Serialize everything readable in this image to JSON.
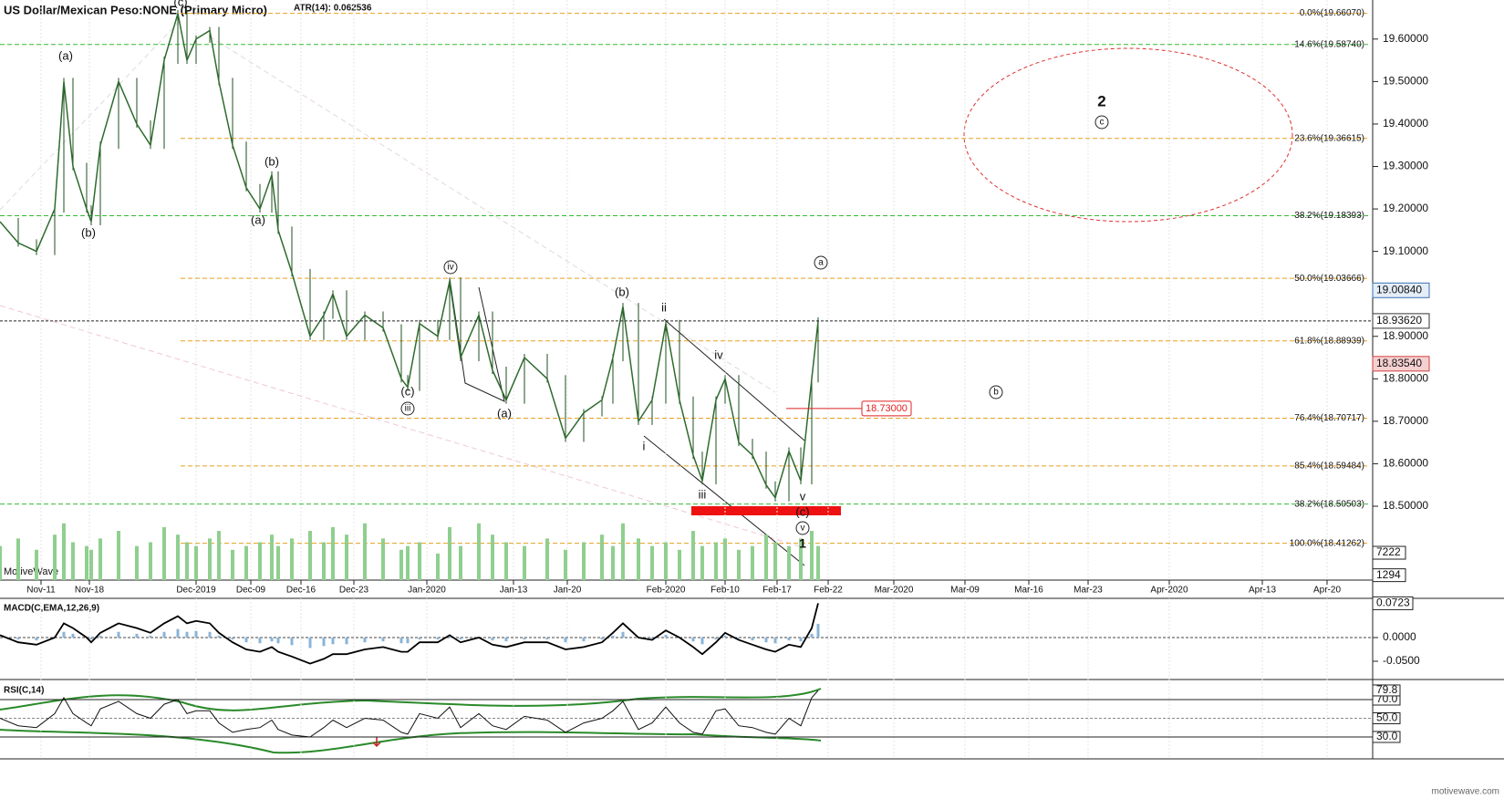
{
  "chart_data": {
    "type": "line",
    "title": "US Dollar/Mexican Peso:NONE (Primary Micro)",
    "subtitle": "ATR(14): 0.062536",
    "color": "#2e6b2e",
    "x": [
      0,
      2,
      4,
      6,
      7,
      8,
      9.5,
      10,
      11,
      13,
      15,
      16.5,
      18,
      19.5,
      20.5,
      21.5,
      23,
      24,
      25.5,
      27,
      28.5,
      29.8,
      30.5,
      32,
      34,
      35.5,
      36.5,
      38,
      40,
      42,
      44,
      44.7,
      46,
      48,
      49.3,
      50.5,
      52.5,
      54,
      55.5,
      57.5,
      60,
      62,
      64,
      66,
      67.2,
      68.3,
      70,
      71.5,
      73,
      74.5,
      76,
      77,
      78.5,
      79.5,
      81,
      82.5,
      84,
      85,
      86.5,
      87.8,
      89,
      89.7
    ],
    "values": [
      19.17,
      19.12,
      19.1,
      19.2,
      19.5,
      19.3,
      19.2,
      19.17,
      19.35,
      19.5,
      19.4,
      19.35,
      19.55,
      19.66,
      19.55,
      19.6,
      19.62,
      19.5,
      19.35,
      19.25,
      19.2,
      19.28,
      19.15,
      19.05,
      18.9,
      18.95,
      19.0,
      18.9,
      18.95,
      18.92,
      18.8,
      18.78,
      18.93,
      18.9,
      19.03,
      18.85,
      18.95,
      18.82,
      18.75,
      18.85,
      18.8,
      18.66,
      18.72,
      18.75,
      18.85,
      18.97,
      18.7,
      18.75,
      18.93,
      18.75,
      18.62,
      18.56,
      18.75,
      18.8,
      18.65,
      18.62,
      18.55,
      18.52,
      18.63,
      18.56,
      18.8,
      18.9362
    ],
    "xlim": [
      0,
      150.5
    ],
    "xticks": [
      {
        "value": 4.5,
        "label": "Nov-11"
      },
      {
        "value": 9.8,
        "label": "Nov-18"
      },
      {
        "value": 21.5,
        "label": "Dec-2019"
      },
      {
        "value": 27.5,
        "label": "Dec-09"
      },
      {
        "value": 33,
        "label": "Dec-16"
      },
      {
        "value": 38.8,
        "label": "Dec-23"
      },
      {
        "value": 46.8,
        "label": "Jan-2020"
      },
      {
        "value": 56.3,
        "label": "Jan-13"
      },
      {
        "value": 62.2,
        "label": "Jan-20"
      },
      {
        "value": 73,
        "label": "Feb-2020"
      },
      {
        "value": 79.5,
        "label": "Feb-10"
      },
      {
        "value": 85.2,
        "label": "Feb-17"
      },
      {
        "value": 90.8,
        "label": "Feb-22"
      },
      {
        "value": 98,
        "label": "Mar-2020"
      },
      {
        "value": 105.8,
        "label": "Mar-09"
      },
      {
        "value": 112.8,
        "label": "Mar-16"
      },
      {
        "value": 119.3,
        "label": "Mar-23"
      },
      {
        "value": 128.2,
        "label": "Apr-2020"
      },
      {
        "value": 138.4,
        "label": "Apr-13"
      },
      {
        "value": 145.5,
        "label": "Apr-20"
      }
    ],
    "ylim": [
      18.326,
      19.692
    ],
    "yticks": [
      {
        "value": 19.6,
        "label": "19.60000"
      },
      {
        "value": 19.5,
        "label": "19.50000"
      },
      {
        "value": 19.4,
        "label": "19.40000"
      },
      {
        "value": 19.3,
        "label": "19.30000"
      },
      {
        "value": 19.2,
        "label": "19.20000"
      },
      {
        "value": 19.1,
        "label": "19.10000"
      },
      {
        "value": 18.9,
        "label": "18.90000"
      },
      {
        "value": 18.8,
        "label": "18.80000"
      },
      {
        "value": 18.7,
        "label": "18.70000"
      },
      {
        "value": 18.6,
        "label": "18.60000"
      },
      {
        "value": 18.5,
        "label": "18.50000"
      }
    ],
    "grid": true,
    "price_labels": [
      {
        "value": 19.0084,
        "label": "19.00840",
        "color": "#3a6fb0"
      },
      {
        "value": 18.9362,
        "label": "18.93620",
        "color": "#333333"
      },
      {
        "value": 18.8354,
        "label": "18.83540",
        "color": "#d04040"
      }
    ],
    "target": {
      "value": 18.73,
      "label": "18.73000",
      "color": "#e02020"
    },
    "fib_levels": [
      {
        "value": 19.6607,
        "label": "0.0%(19.66070)",
        "color": "#e8a020"
      },
      {
        "value": 19.5874,
        "label": "14.6%(19.58740)",
        "color": "#33bb33"
      },
      {
        "value": 19.36615,
        "label": "23.6%(19.36615)",
        "color": "#e8a020"
      },
      {
        "value": 19.18393,
        "label": "38.2%(19.18393)",
        "color": "#33bb33"
      },
      {
        "value": 19.03666,
        "label": "50.0%(19.03666)",
        "color": "#e8a020"
      },
      {
        "value": 18.88939,
        "label": "61.8%(18.88939)",
        "color": "#e8a020"
      },
      {
        "value": 18.70717,
        "label": "76.4%(18.70717)",
        "color": "#e8a020"
      },
      {
        "value": 18.59484,
        "label": "85.4%(18.59484)",
        "color": "#e8a020"
      },
      {
        "value": 18.50503,
        "label": "38.2%(18.50503)",
        "color": "#33bb33"
      },
      {
        "value": 18.41262,
        "label": "100.0%(18.41262)",
        "color": "#e8a020"
      }
    ],
    "annotations": [
      "(a)",
      "(b)",
      "(c)",
      "(b)",
      "(a)",
      "iv",
      "(c)",
      "iii",
      "(a)",
      "(b)",
      "ii",
      "iv",
      "i",
      "iii",
      "v",
      "(c)",
      "v",
      "1",
      "a",
      "b",
      "2",
      "c"
    ],
    "volume": {
      "color": "#8fcf8f",
      "ylim": [
        0,
        20000
      ],
      "yticks": [
        7222,
        1294
      ],
      "values": [
        9000,
        11000,
        8000,
        12000,
        15000,
        10000,
        9000,
        8000,
        11000,
        13000,
        9000,
        10000,
        14000,
        12000,
        10000,
        9000,
        11000,
        13000,
        8000,
        9000,
        10000,
        12000,
        9000,
        11000,
        13000,
        10000,
        14000,
        12000,
        15000,
        11000,
        8000,
        9000,
        10000,
        7000,
        14000,
        9000,
        15000,
        12000,
        10000,
        9000,
        11000,
        8000,
        10000,
        12000,
        9000,
        15000,
        11000,
        9000,
        10000,
        8000,
        13000,
        9000,
        10000,
        11000,
        8000,
        9000,
        12000,
        10000,
        9000,
        11000,
        13000,
        9000
      ]
    },
    "macd": {
      "title": "MACD(C,EMA,12,26,9)",
      "ylim": [
        -0.0827,
        0.075
      ],
      "yticks": [
        {
          "value": 0,
          "label": "0.0000"
        },
        {
          "value": -0.05,
          "label": "-0.0500"
        }
      ],
      "values": [
        0.005,
        -0.01,
        -0.015,
        0,
        0.03,
        0.02,
        0,
        -0.01,
        0.01,
        0.03,
        0.02,
        0.01,
        0.03,
        0.045,
        0.03,
        0.035,
        0.03,
        0.01,
        -0.01,
        -0.025,
        -0.03,
        -0.02,
        -0.03,
        -0.04,
        -0.055,
        -0.045,
        -0.035,
        -0.035,
        -0.025,
        -0.02,
        -0.03,
        -0.03,
        -0.01,
        -0.01,
        0.005,
        -0.01,
        0,
        -0.015,
        -0.02,
        -0.01,
        -0.01,
        -0.025,
        -0.02,
        -0.01,
        0.01,
        0.03,
        0,
        -0.005,
        0.015,
        0,
        -0.02,
        -0.035,
        -0.01,
        0.01,
        -0.005,
        -0.015,
        -0.025,
        -0.03,
        -0.015,
        -0.02,
        0.02,
        0.0723
      ]
    },
    "rsi": {
      "title": "RSI(C,14)",
      "ylim": [
        8.5,
        90.5
      ],
      "yticks": [
        {
          "value": 70,
          "label": "70.0"
        },
        {
          "value": 50,
          "label": "50.0"
        },
        {
          "value": 30,
          "label": "30.0"
        }
      ],
      "values": [
        50,
        42,
        40,
        55,
        72,
        55,
        45,
        42,
        60,
        68,
        55,
        50,
        65,
        70,
        55,
        58,
        58,
        45,
        35,
        38,
        40,
        48,
        38,
        32,
        30,
        40,
        48,
        40,
        50,
        48,
        35,
        33,
        55,
        50,
        62,
        40,
        55,
        42,
        38,
        52,
        48,
        35,
        45,
        50,
        58,
        68,
        38,
        45,
        62,
        45,
        35,
        33,
        58,
        60,
        42,
        40,
        35,
        33,
        50,
        42,
        72,
        79.8
      ]
    },
    "watermark": "MotiveWave",
    "footer": "motivewave.com"
  }
}
